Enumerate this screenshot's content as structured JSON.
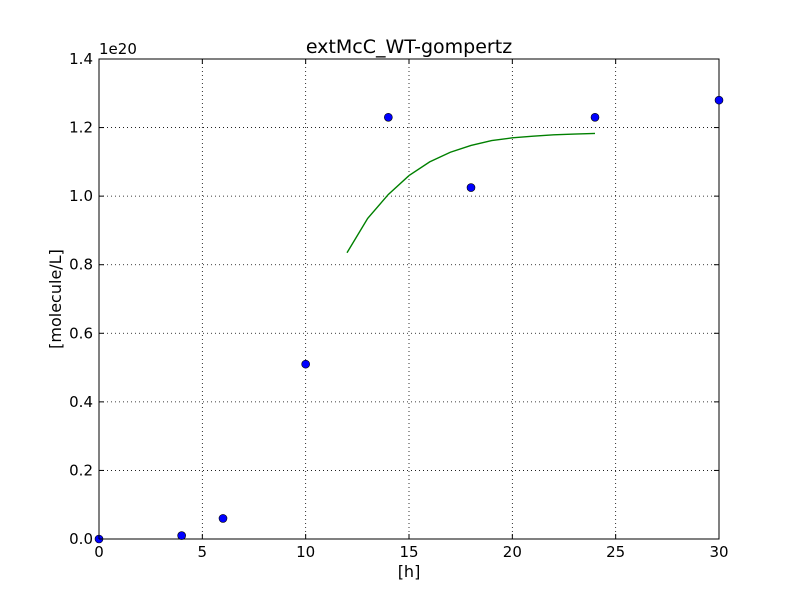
{
  "chart_data": {
    "type": "scatter",
    "title": "extMcC_WT-gompertz",
    "xlabel": "[h]",
    "ylabel": "[molecule/L]",
    "y_offset_label": "1e20",
    "xlim": [
      0,
      30
    ],
    "ylim": [
      0,
      1.4
    ],
    "y_scale_factor": 1e+20,
    "grid": true,
    "x_ticks": [
      0,
      5,
      10,
      15,
      20,
      25,
      30
    ],
    "x_tick_labels": [
      "0",
      "5",
      "10",
      "15",
      "20",
      "25",
      "30"
    ],
    "y_ticks": [
      0.0,
      0.2,
      0.4,
      0.6,
      0.8,
      1.0,
      1.2,
      1.4
    ],
    "y_tick_labels": [
      "0.0",
      "0.2",
      "0.4",
      "0.6",
      "0.8",
      "1.0",
      "1.2",
      "1.4"
    ],
    "series": [
      {
        "kind": "points",
        "color": "#0000ff",
        "x": [
          0,
          4,
          6,
          10,
          14,
          18,
          24,
          30
        ],
        "y": [
          0.0,
          0.01,
          0.06,
          0.51,
          1.23,
          1.025,
          1.23,
          1.28
        ]
      },
      {
        "kind": "line",
        "color": "#008000",
        "x": [
          12,
          13,
          14,
          15,
          16,
          17,
          18,
          19,
          20,
          21,
          22,
          23,
          24
        ],
        "y": [
          0.835,
          0.935,
          1.005,
          1.06,
          1.1,
          1.128,
          1.148,
          1.162,
          1.17,
          1.175,
          1.179,
          1.181,
          1.183
        ]
      }
    ]
  }
}
